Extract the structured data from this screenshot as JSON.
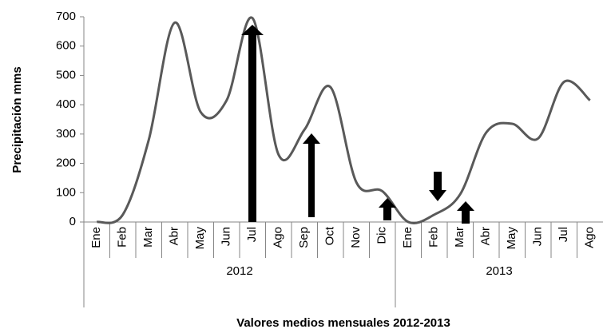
{
  "chart_data": {
    "type": "line",
    "y_label": "Precipitación mms",
    "x_label": "Valores medios mensuales 2012-2013",
    "categories": [
      "Ene",
      "Feb",
      "Mar",
      "Abr",
      "May",
      "Jun",
      "Jul",
      "Ago",
      "Sep",
      "Oct",
      "Nov",
      "Dic",
      "Ene",
      "Feb",
      "Mar",
      "Abr",
      "May",
      "Jun",
      "Jul",
      "Ago"
    ],
    "groups": [
      {
        "label": "2012",
        "size": 12
      },
      {
        "label": "2013",
        "size": 8
      }
    ],
    "series": [
      {
        "name": "Precipitación",
        "color": "#595959",
        "values": [
          0,
          25,
          280,
          680,
          375,
          415,
          695,
          230,
          315,
          460,
          135,
          105,
          0,
          25,
          95,
          305,
          335,
          285,
          478,
          415
        ]
      }
    ],
    "ylim": [
      0,
      700
    ],
    "yticks": [
      0,
      100,
      200,
      300,
      400,
      500,
      600,
      700
    ],
    "smooth": true
  }
}
